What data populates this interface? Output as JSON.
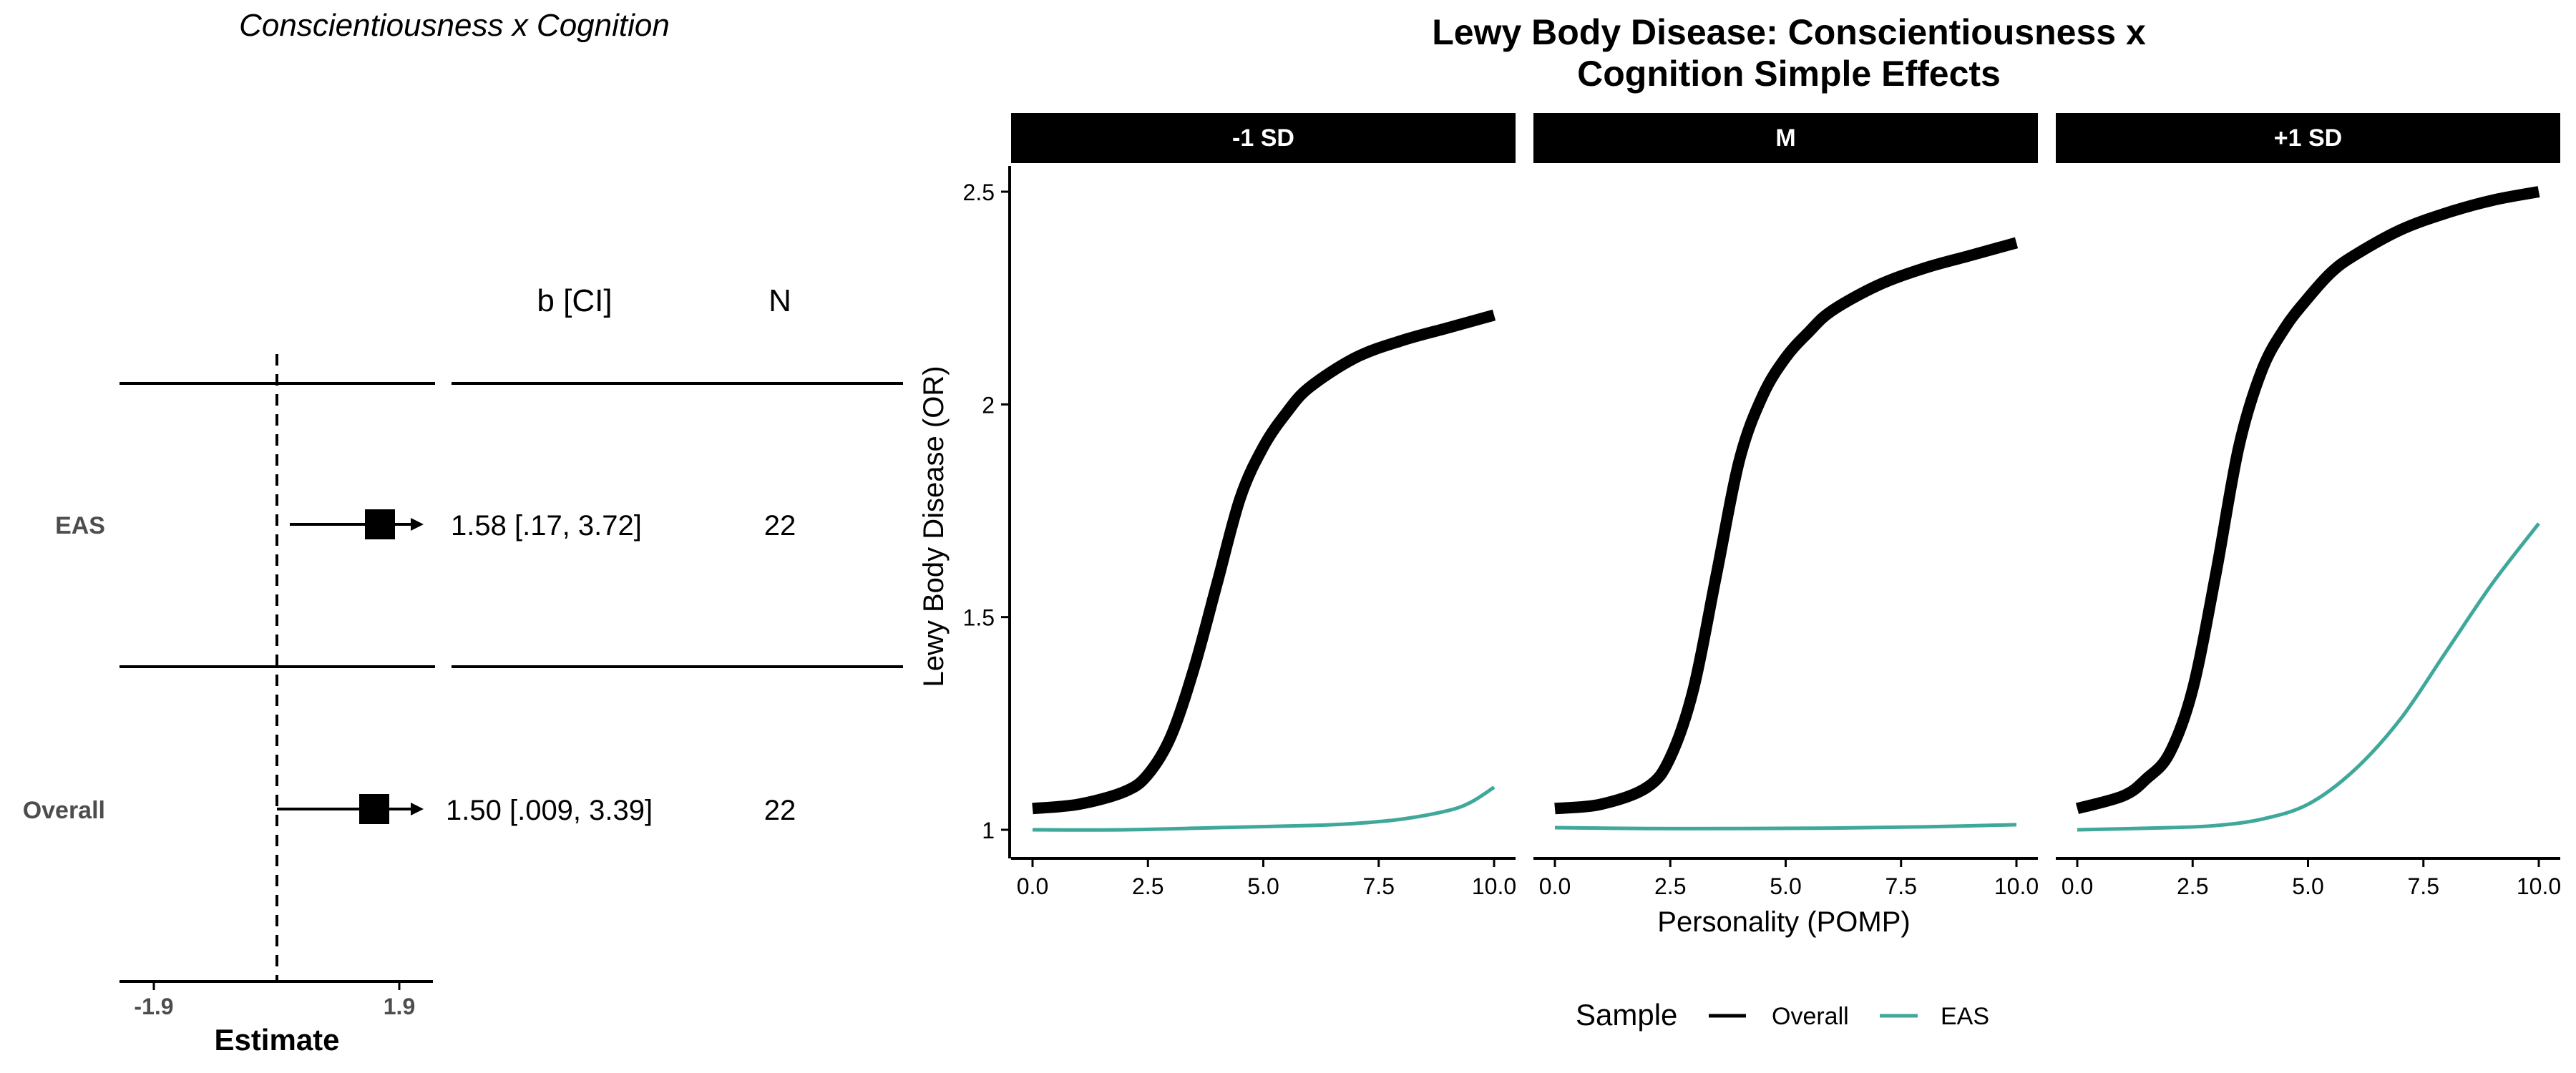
{
  "forest": {
    "title": "Conscientiousness x Cognition",
    "col_estimate": "b [CI]",
    "col_n": "N",
    "xlabel": "Estimate",
    "ticks": [
      "-1.9",
      "1.9"
    ],
    "rows": [
      {
        "label": "EAS",
        "estimate": 1.58,
        "ci_low": 0.17,
        "ci_high": 3.72,
        "text": "1.58 [.17, 3.72]",
        "n": "22"
      },
      {
        "label": "Overall",
        "estimate": 1.5,
        "ci_low": 0.009,
        "ci_high": 3.39,
        "text": "1.50 [.009, 3.39]",
        "n": "22"
      }
    ]
  },
  "chart_data": {
    "type": "line",
    "title": "Lewy Body Disease: Conscientiousness x Cognition Simple Effects",
    "title_lines": [
      "Lewy Body Disease: Conscientiousness x",
      "Cognition Simple Effects"
    ],
    "xlabel": "Personality (POMP)",
    "ylabel": "Lewy Body Disease (OR)",
    "xlim": [
      0,
      10
    ],
    "ylim": [
      1,
      2.5
    ],
    "xticks": [
      "0.0",
      "2.5",
      "5.0",
      "7.5",
      "10.0"
    ],
    "yticks": [
      "1",
      "1.5",
      "2",
      "2.5"
    ],
    "legend": {
      "title": "Sample",
      "position": "bottom",
      "entries": [
        "Overall",
        "EAS"
      ]
    },
    "colors": {
      "Overall": "#000000",
      "EAS": "#3fa89a"
    },
    "panels": [
      {
        "name": "-1 SD",
        "series": [
          {
            "name": "Overall",
            "x": [
              0,
              1,
              2,
              2.5,
              3,
              3.5,
              4,
              4.5,
              5,
              5.5,
              6,
              7,
              8,
              9,
              10
            ],
            "y": [
              1.05,
              1.06,
              1.09,
              1.13,
              1.22,
              1.38,
              1.58,
              1.78,
              1.9,
              1.98,
              2.04,
              2.11,
              2.15,
              2.18,
              2.21
            ]
          },
          {
            "name": "EAS",
            "x": [
              0,
              2,
              4,
              6,
              7,
              8,
              9,
              9.5,
              10
            ],
            "y": [
              1.0,
              1.0,
              1.005,
              1.01,
              1.015,
              1.025,
              1.045,
              1.065,
              1.1
            ]
          }
        ]
      },
      {
        "name": "M",
        "series": [
          {
            "name": "Overall",
            "x": [
              0,
              1,
              2,
              2.5,
              3,
              3.5,
              4,
              4.5,
              5,
              5.5,
              6,
              7,
              8,
              9,
              10
            ],
            "y": [
              1.05,
              1.06,
              1.1,
              1.17,
              1.33,
              1.6,
              1.87,
              2.02,
              2.11,
              2.17,
              2.22,
              2.28,
              2.32,
              2.35,
              2.38
            ]
          },
          {
            "name": "EAS",
            "x": [
              0,
              2,
              4,
              6,
              8,
              10
            ],
            "y": [
              1.005,
              1.003,
              1.003,
              1.004,
              1.007,
              1.012
            ]
          }
        ]
      },
      {
        "name": "+1 SD",
        "series": [
          {
            "name": "Overall",
            "x": [
              0,
              1,
              1.5,
              2,
              2.5,
              3,
              3.5,
              4,
              4.5,
              5,
              5.5,
              6,
              7,
              8,
              9,
              10
            ],
            "y": [
              1.05,
              1.08,
              1.12,
              1.18,
              1.33,
              1.6,
              1.9,
              2.08,
              2.18,
              2.25,
              2.31,
              2.35,
              2.41,
              2.45,
              2.48,
              2.5
            ]
          },
          {
            "name": "EAS",
            "x": [
              0,
              2,
              3,
              4,
              5,
              6,
              7,
              8,
              9,
              10
            ],
            "y": [
              1.0,
              1.005,
              1.01,
              1.025,
              1.06,
              1.14,
              1.26,
              1.42,
              1.58,
              1.72
            ]
          }
        ]
      }
    ]
  }
}
